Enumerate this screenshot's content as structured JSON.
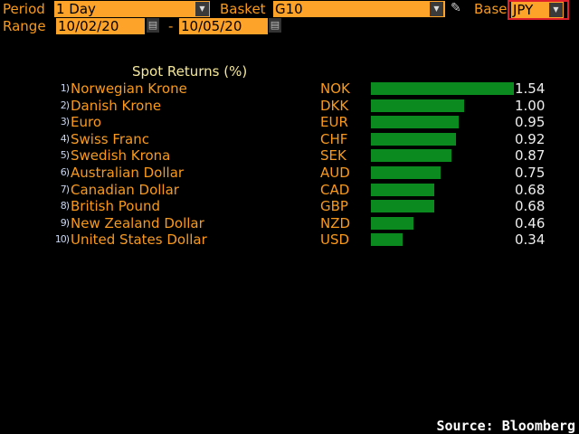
{
  "header": {
    "period_label": "Period",
    "period_value": "1 Day",
    "basket_label": "Basket",
    "basket_value": "G10",
    "base_label": "Base",
    "base_value": "JPY",
    "range_label": "Range",
    "range_start": "10/02/20",
    "range_sep": "-",
    "range_end": "10/05/20"
  },
  "title": "Spot Returns (%)",
  "rows": [
    {
      "num": "1)",
      "name": "Norwegian Krone",
      "code": "NOK",
      "value": "1.54"
    },
    {
      "num": "2)",
      "name": "Danish Krone",
      "code": "DKK",
      "value": "1.00"
    },
    {
      "num": "3)",
      "name": "Euro",
      "code": "EUR",
      "value": "0.95"
    },
    {
      "num": "4)",
      "name": "Swiss Franc",
      "code": "CHF",
      "value": "0.92"
    },
    {
      "num": "5)",
      "name": "Swedish Krona",
      "code": "SEK",
      "value": "0.87"
    },
    {
      "num": "6)",
      "name": "Australian Dollar",
      "code": "AUD",
      "value": "0.75"
    },
    {
      "num": "7)",
      "name": "Canadian Dollar",
      "code": "CAD",
      "value": "0.68"
    },
    {
      "num": "8)",
      "name": "British Pound",
      "code": "GBP",
      "value": "0.68"
    },
    {
      "num": "9)",
      "name": "New Zealand Dollar",
      "code": "NZD",
      "value": "0.46"
    },
    {
      "num": "10)",
      "name": "United States Dollar",
      "code": "USD",
      "value": "0.34"
    }
  ],
  "source": "Source: Bloomberg"
}
